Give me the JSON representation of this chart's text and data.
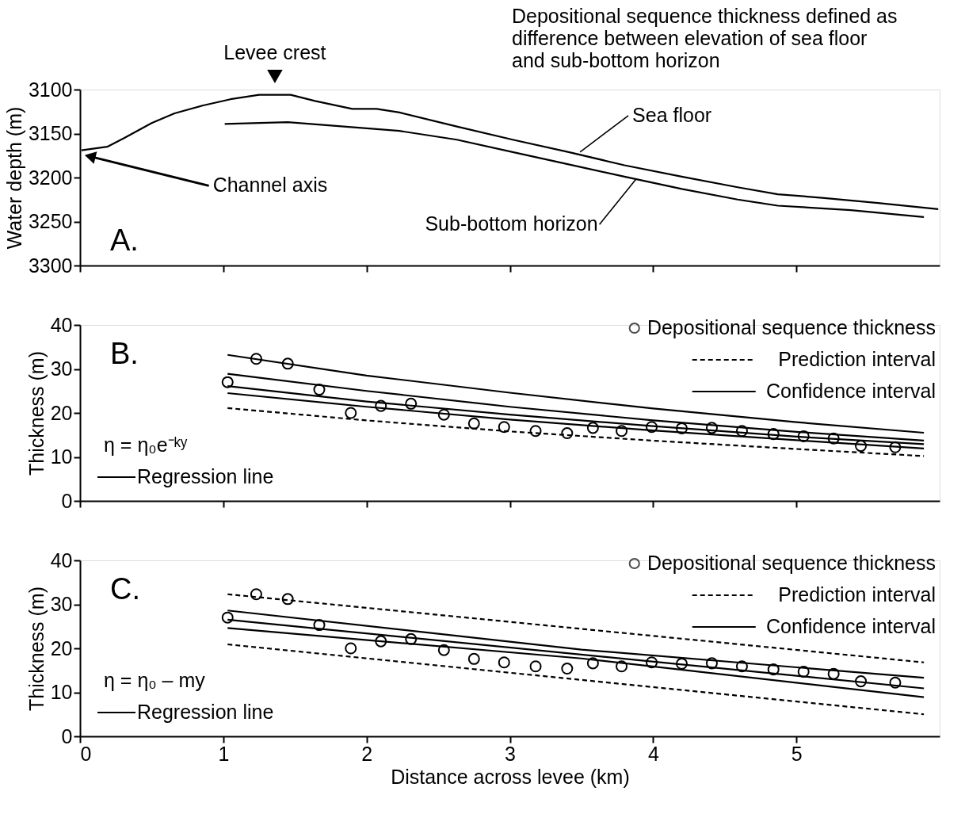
{
  "chart_data": [
    {
      "type": "line",
      "title": "A.",
      "subtitle": "Depositional sequence thickness defined as difference between elevation of sea floor and sub-bottom horizon",
      "ylabel": "Water depth (m)",
      "xlim": [
        0,
        6
      ],
      "xticks": [
        0,
        1,
        2,
        3,
        4,
        5
      ],
      "ylim": [
        3300,
        3100
      ],
      "yticks": [
        3100,
        3150,
        3200,
        3250,
        3300
      ],
      "tick_labels": "y",
      "series": [
        {
          "color": "#000000",
          "x": [
            0.01,
            0.19,
            0.31,
            0.5,
            0.66,
            0.86,
            1.05,
            1.25,
            1.47,
            1.64,
            1.9,
            2.07,
            2.23,
            2.63,
            3.02,
            3.41,
            3.8,
            4.2,
            4.59,
            4.87,
            5.18,
            5.57,
            5.99
          ],
          "values": [
            3169,
            3165,
            3155,
            3138,
            3127,
            3118,
            3111,
            3106,
            3106,
            3113,
            3122,
            3122,
            3126,
            3142,
            3157,
            3171,
            3186,
            3199,
            3211,
            3219,
            3223,
            3229,
            3236
          ]
        },
        {
          "color": "#000000",
          "x": [
            1.01,
            1.45,
            2.0,
            2.23,
            2.63,
            3.02,
            3.41,
            3.8,
            4.2,
            4.59,
            4.87,
            5.38,
            5.89
          ],
          "values": [
            3139,
            3137,
            3144,
            3147,
            3157,
            3171,
            3185,
            3199,
            3213,
            3225,
            3232,
            3237,
            3245
          ]
        }
      ],
      "annotations": [
        {
          "text": "Levee crest",
          "x": 1.36,
          "y": 3105
        },
        {
          "text": "Sea floor",
          "x": 3.49,
          "y": 3171
        },
        {
          "text": "Sub-bottom horizon",
          "x": 3.88,
          "y": 3202
        },
        {
          "text": "Channel axis",
          "x": 0.07,
          "y": 3176
        }
      ]
    },
    {
      "type": "line",
      "title": "B.",
      "ylabel": "Thickness (m)",
      "xlim": [
        0,
        6
      ],
      "xticks": [
        0,
        1,
        2,
        3,
        4,
        5
      ],
      "ylim": [
        0,
        40
      ],
      "yticks": [
        0,
        10,
        20,
        30,
        40
      ],
      "tick_labels": "y",
      "legend": "top right",
      "annotations": [
        "η = η₀e⁻ᵏʸ",
        "Regression line"
      ],
      "series": [
        {
          "type": "scatter",
          "marker": "circle",
          "name": "Depositional sequence thickness",
          "color": "#000000",
          "x": [
            1.03,
            1.23,
            1.45,
            1.67,
            1.89,
            2.1,
            2.31,
            2.54,
            2.75,
            2.96,
            3.18,
            3.4,
            3.58,
            3.78,
            3.99,
            4.2,
            4.41,
            4.62,
            4.84,
            5.05,
            5.26,
            5.45,
            5.69
          ],
          "values": [
            27.0,
            32.3,
            31.2,
            25.3,
            20.0,
            21.6,
            22.1,
            19.6,
            17.6,
            16.8,
            15.9,
            15.4,
            16.6,
            15.9,
            16.8,
            16.5,
            16.6,
            15.9,
            15.2,
            14.7,
            14.2,
            12.5,
            12.2
          ]
        },
        {
          "name": "Prediction interval",
          "line_style": "dashed",
          "color": "#000000",
          "x": [
            1.03,
            2,
            3,
            4,
            5,
            5.89
          ],
          "values": [
            21.1,
            18.3,
            15.8,
            13.7,
            11.8,
            10.2
          ]
        },
        {
          "name": "Confidence interval",
          "line_style": "solid",
          "color": "#000000",
          "x": [
            1.03,
            2,
            3,
            4,
            5,
            5.89
          ],
          "values": [
            28.9,
            25.0,
            21.4,
            18.3,
            15.7,
            13.7
          ]
        },
        {
          "line_style": "solid",
          "color": "#000000",
          "x": [
            1.03,
            2,
            3,
            4,
            5,
            5.89
          ],
          "values": [
            24.5,
            21.4,
            18.5,
            16.0,
            13.8,
            11.9
          ]
        },
        {
          "line_style": "solid",
          "color": "#000000",
          "x": [
            1.03,
            2,
            3,
            4,
            5,
            5.89
          ],
          "values": [
            33.2,
            28.5,
            24.6,
            21.0,
            17.9,
            15.5
          ]
        },
        {
          "line_style": "solid",
          "color": "#000000",
          "x": [
            1.03,
            2,
            3,
            4,
            5,
            5.89
          ],
          "values": [
            26.1,
            22.6,
            19.6,
            17.0,
            14.6,
            12.9
          ]
        }
      ]
    },
    {
      "type": "line",
      "title": "C.",
      "ylabel": "Thickness (m)",
      "xlabel": "Distance across levee (km)",
      "xlim": [
        0,
        6
      ],
      "xticks": [
        0,
        1,
        2,
        3,
        4,
        5
      ],
      "ylim": [
        0,
        40
      ],
      "yticks": [
        0,
        10,
        20,
        30,
        40
      ],
      "legend": "top right",
      "annotations": [
        "η = η₀ – my",
        "Regression line"
      ],
      "series": [
        {
          "type": "scatter",
          "marker": "circle",
          "name": "Depositional sequence thickness",
          "color": "#000000",
          "x": [
            1.03,
            1.23,
            1.45,
            1.67,
            1.89,
            2.1,
            2.31,
            2.54,
            2.75,
            2.96,
            3.18,
            3.4,
            3.58,
            3.78,
            3.99,
            4.2,
            4.41,
            4.62,
            4.84,
            5.05,
            5.26,
            5.45,
            5.69
          ],
          "values": [
            27.0,
            32.3,
            31.2,
            25.3,
            20.0,
            21.6,
            22.1,
            19.6,
            17.6,
            16.8,
            15.9,
            15.4,
            16.6,
            15.9,
            16.8,
            16.5,
            16.6,
            15.9,
            15.2,
            14.7,
            14.2,
            12.5,
            12.2
          ]
        },
        {
          "name": "Prediction interval",
          "line_style": "dashed",
          "color": "#000000",
          "x": [
            1.03,
            5.89
          ],
          "values": [
            32.3,
            16.8
          ]
        },
        {
          "line_style": "dashed",
          "color": "#000000",
          "x": [
            1.03,
            5.89
          ],
          "values": [
            20.9,
            5.0
          ]
        },
        {
          "line_style": "solid",
          "color": "#000000",
          "x": [
            1.03,
            3.5,
            5.89
          ],
          "values": [
            28.6,
            19.7,
            13.3
          ]
        },
        {
          "name": "Confidence interval",
          "line_style": "solid",
          "color": "#000000",
          "x": [
            1.03,
            3.5,
            5.89
          ],
          "values": [
            24.6,
            17.7,
            8.9
          ]
        },
        {
          "line_style": "solid",
          "color": "#000000",
          "x": [
            1.03,
            5.89
          ],
          "values": [
            26.5,
            10.9
          ]
        }
      ]
    }
  ]
}
